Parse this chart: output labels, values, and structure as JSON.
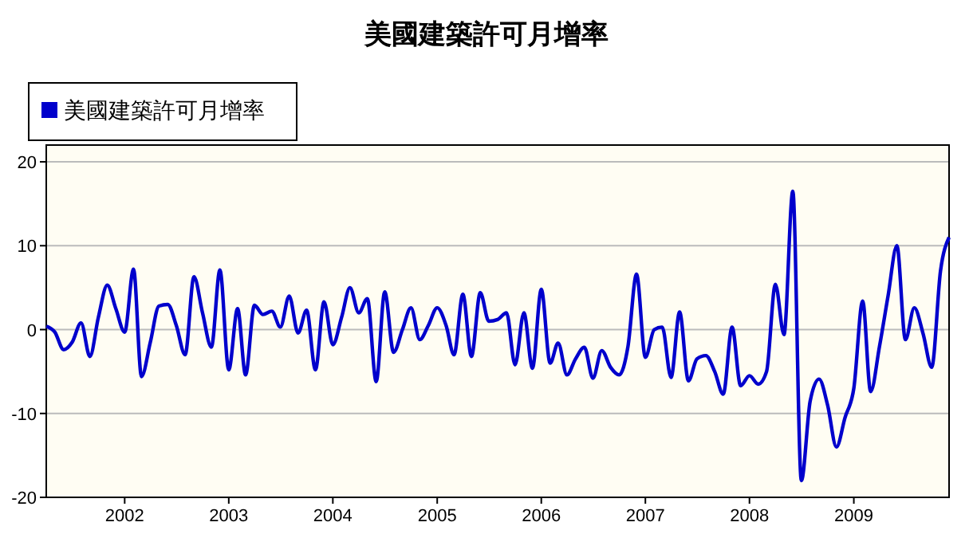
{
  "chart_data": {
    "type": "line",
    "title": "美國建築許可月增率",
    "legend": "top left",
    "grid": "y",
    "ylim": [
      -20,
      22
    ],
    "yticks": [
      -20,
      -10,
      0,
      10,
      20
    ],
    "xlim": [
      "2001-04",
      "2009-12"
    ],
    "xticks": [
      {
        "value": "2002-01",
        "label": "2002"
      },
      {
        "value": "2003-01",
        "label": "2003"
      },
      {
        "value": "2004-01",
        "label": "2004"
      },
      {
        "value": "2005-01",
        "label": "2005"
      },
      {
        "value": "2006-01",
        "label": "2006"
      },
      {
        "value": "2007-01",
        "label": "2007"
      },
      {
        "value": "2008-01",
        "label": "2008"
      },
      {
        "value": "2009-01",
        "label": "2009"
      }
    ],
    "x": [
      "2001-04",
      "2001-05",
      "2001-06",
      "2001-07",
      "2001-08",
      "2001-09",
      "2001-10",
      "2001-11",
      "2001-12",
      "2002-01",
      "2002-02",
      "2002-03",
      "2002-04",
      "2002-05",
      "2002-06",
      "2002-07",
      "2002-08",
      "2002-09",
      "2002-10",
      "2002-11",
      "2002-12",
      "2003-01",
      "2003-02",
      "2003-03",
      "2003-04",
      "2003-05",
      "2003-06",
      "2003-07",
      "2003-08",
      "2003-09",
      "2003-10",
      "2003-11",
      "2003-12",
      "2004-01",
      "2004-02",
      "2004-03",
      "2004-04",
      "2004-05",
      "2004-06",
      "2004-07",
      "2004-08",
      "2004-09",
      "2004-10",
      "2004-11",
      "2004-12",
      "2005-01",
      "2005-02",
      "2005-03",
      "2005-04",
      "2005-05",
      "2005-06",
      "2005-07",
      "2005-08",
      "2005-09",
      "2005-10",
      "2005-11",
      "2005-12",
      "2006-01",
      "2006-02",
      "2006-03",
      "2006-04",
      "2006-05",
      "2006-06",
      "2006-07",
      "2006-08",
      "2006-09",
      "2006-10",
      "2006-11",
      "2006-12",
      "2007-01",
      "2007-02",
      "2007-03",
      "2007-04",
      "2007-05",
      "2007-06",
      "2007-07",
      "2007-08",
      "2007-09",
      "2007-10",
      "2007-11",
      "2007-12",
      "2008-01",
      "2008-02",
      "2008-03",
      "2008-04",
      "2008-05",
      "2008-06",
      "2008-07",
      "2008-08",
      "2008-09",
      "2008-10",
      "2008-11",
      "2008-12",
      "2009-01",
      "2009-02",
      "2009-03",
      "2009-04",
      "2009-05",
      "2009-06",
      "2009-07",
      "2009-08",
      "2009-09",
      "2009-10",
      "2009-11",
      "2009-12"
    ],
    "series": [
      {
        "name": "美國建築許可月增率",
        "color": "#0000cc",
        "values": [
          0.4,
          -0.3,
          -2.4,
          -1.5,
          0.8,
          -3.2,
          1.5,
          5.3,
          2.5,
          -0.3,
          7.2,
          -5.6,
          -1.5,
          2.8,
          3.0,
          0.5,
          -3.0,
          6.3,
          2.0,
          -2.1,
          7.1,
          -4.8,
          2.5,
          -5.4,
          2.9,
          1.8,
          2.2,
          0.3,
          4.0,
          -0.4,
          2.3,
          -4.8,
          3.3,
          -1.8,
          1.5,
          5.0,
          2.0,
          3.7,
          -6.2,
          4.5,
          -2.7,
          0.0,
          2.6,
          -1.2,
          0.5,
          2.6,
          0.5,
          -3.0,
          4.2,
          -3.2,
          4.4,
          1.0,
          1.2,
          2.0,
          -4.2,
          2.0,
          -4.6,
          4.8,
          -4.0,
          -1.6,
          -5.4,
          -3.5,
          -2.1,
          -5.8,
          -2.5,
          -4.5,
          -5.4,
          -2.0,
          6.6,
          -3.3,
          0.0,
          0.3,
          -5.7,
          2.1,
          -6.1,
          -3.5,
          -3.1,
          -5.0,
          -7.7,
          0.3,
          -6.7,
          -5.5,
          -6.5,
          -5.0,
          5.4,
          -0.6,
          16.5,
          -18.0,
          -8.5,
          -5.9,
          -9.0,
          -14.0,
          -10.5,
          -7.0,
          3.4,
          -7.4,
          -2.0,
          4.0,
          10.0,
          -1.2,
          2.6,
          -0.5,
          -4.5,
          7.0,
          11.0
        ]
      }
    ]
  }
}
